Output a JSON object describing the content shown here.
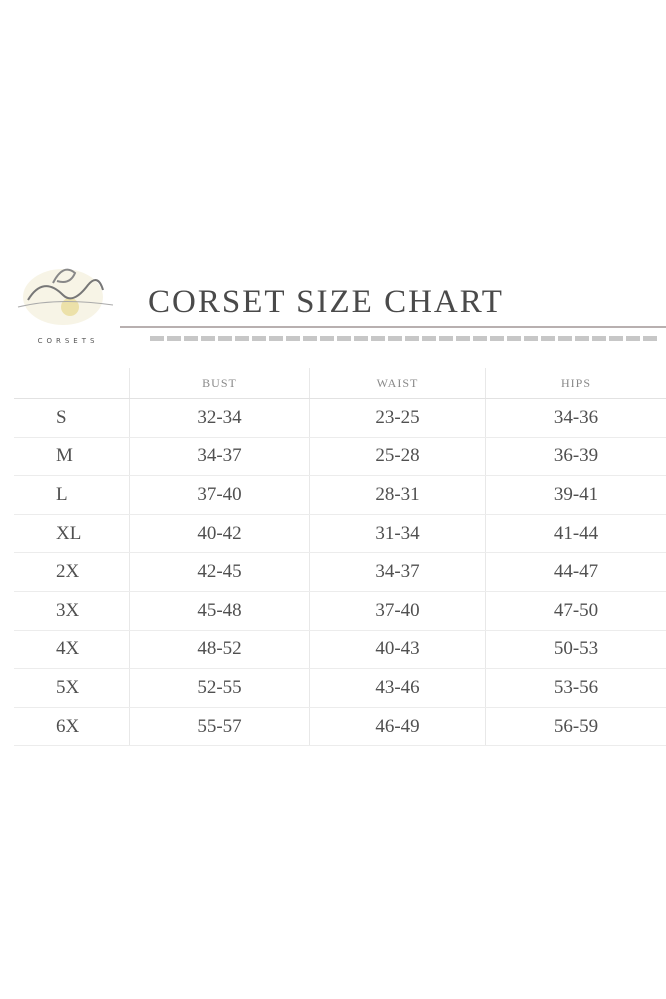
{
  "logo": {
    "script_text": "Lucy",
    "wordmark": "CORSETS"
  },
  "title": "CORSET SIZE CHART",
  "table": {
    "headers": [
      "",
      "BUST",
      "WAIST",
      "HIPS"
    ],
    "rows": [
      [
        "S",
        "32-34",
        "23-25",
        "34-36"
      ],
      [
        "M",
        "34-37",
        "25-28",
        "36-39"
      ],
      [
        "L",
        "37-40",
        "28-31",
        "39-41"
      ],
      [
        "XL",
        "40-42",
        "31-34",
        "41-44"
      ],
      [
        "2X",
        "42-45",
        "34-37",
        "44-47"
      ],
      [
        "3X",
        "45-48",
        "37-40",
        "47-50"
      ],
      [
        "4X",
        "48-52",
        "40-43",
        "50-53"
      ],
      [
        "5X",
        "52-55",
        "43-46",
        "53-56"
      ],
      [
        "6X",
        "55-57",
        "46-49",
        "56-59"
      ]
    ]
  }
}
